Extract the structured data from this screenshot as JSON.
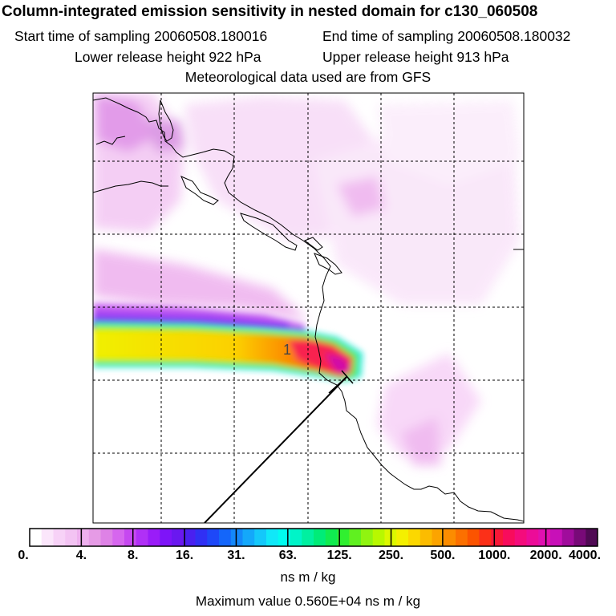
{
  "header": {
    "title": "Column-integrated emission sensitivity in nested domain for c130_060508",
    "start_sampling": "Start time of sampling 20060508.180016",
    "end_sampling": "End time of sampling 20060508.180032",
    "lower_release": "Lower release height  922 hPa",
    "upper_release": "Upper release height  913 hPa",
    "met_data": "Meteorological data used are from GFS"
  },
  "chart_data": {
    "type": "heatmap",
    "title": "Column-integrated emission sensitivity in nested domain for c130_060508",
    "colorbar": {
      "tick_labels": [
        "0.",
        "4.",
        "8.",
        "16.",
        "31.",
        "63.",
        "125.",
        "250.",
        "500.",
        "1000.",
        "2000.",
        "4000."
      ],
      "units": "ns m / kg",
      "colors": [
        "#ffffff",
        "#fbe6fb",
        "#f7d2f7",
        "#f3c3f3",
        "#eeb0ee",
        "#e69be6",
        "#de82e6",
        "#d666ee",
        "#c648f0",
        "#b030f6",
        "#9a1cf8",
        "#7e14f8",
        "#6a18f0",
        "#4a20f0",
        "#3030f4",
        "#1e48f8",
        "#1466fa",
        "#1488fa",
        "#14a8fa",
        "#14c8fa",
        "#10e8f8",
        "#00fcf0",
        "#00f4c8",
        "#00f0a0",
        "#00ec78",
        "#10ec50",
        "#30f030",
        "#60f020",
        "#90f410",
        "#b8f800",
        "#dcf800",
        "#f4f000",
        "#fcd800",
        "#fcbc00",
        "#fca400",
        "#fc8c00",
        "#fc7000",
        "#fc5400",
        "#fc3018",
        "#f81838",
        "#f80c5c",
        "#f40c7c",
        "#ec0c98",
        "#e010b0",
        "#c810b8",
        "#a00c9c",
        "#780a78",
        "#500a54"
      ]
    },
    "marker_label": "1",
    "max_value_text": "Maximum value  0.560E+04 ns m / kg"
  }
}
